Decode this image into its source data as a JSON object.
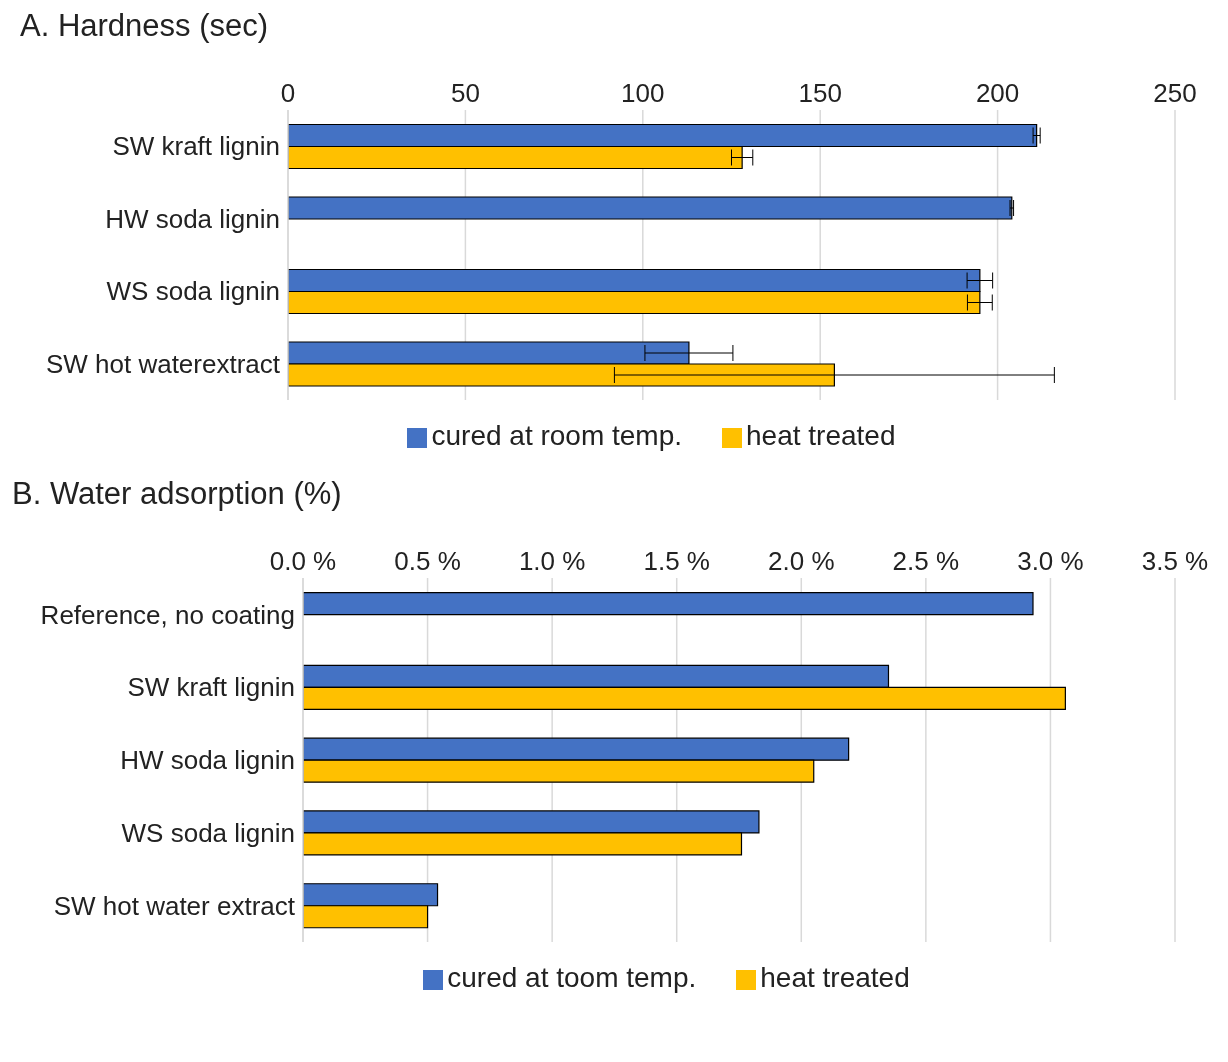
{
  "chart_data": [
    {
      "type": "bar",
      "orientation": "horizontal",
      "title": "A. Hardness (sec)",
      "categories": [
        "SW kraft lignin",
        "HW soda lignin",
        "WS soda lignin",
        "SW hot waterextract"
      ],
      "series": [
        {
          "name": "cured at room temp.",
          "color": "#4472c4",
          "values": [
            211,
            204,
            195,
            113
          ],
          "errors": [
            1,
            0.5,
            3.6,
            12.4
          ]
        },
        {
          "name": "heat treated",
          "color": "#ffc000",
          "values": [
            128,
            null,
            195,
            154
          ],
          "errors": [
            3,
            null,
            3.5,
            62
          ]
        }
      ],
      "xlim": [
        0,
        250
      ],
      "xticks": [
        0,
        50,
        100,
        150,
        200,
        250
      ],
      "grid": "x",
      "legend": "bottom"
    },
    {
      "type": "bar",
      "orientation": "horizontal",
      "title": "B. Water adsorption (%)",
      "categories": [
        "Reference, no coating",
        "SW kraft lignin",
        "HW soda lignin",
        "WS soda lignin",
        "SW hot water extract"
      ],
      "series": [
        {
          "name": "cured at toom temp.",
          "color": "#4472c4",
          "values": [
            2.93,
            2.35,
            2.19,
            1.83,
            0.54
          ]
        },
        {
          "name": "heat treated",
          "color": "#ffc000",
          "values": [
            null,
            3.06,
            2.05,
            1.76,
            0.5
          ]
        }
      ],
      "xlim": [
        0,
        3.5
      ],
      "xticks": [
        {
          "value": 0,
          "label": "0.0 %"
        },
        {
          "value": 0.5,
          "label": "0.5 %"
        },
        {
          "value": 1,
          "label": "1.0 %"
        },
        {
          "value": 1.5,
          "label": "1.5 %"
        },
        {
          "value": 2,
          "label": "2.0 %"
        },
        {
          "value": 2.5,
          "label": "2.5 %"
        },
        {
          "value": 3,
          "label": "3.0 %"
        },
        {
          "value": 3.5,
          "label": "3.5 %"
        }
      ],
      "grid": "x",
      "legend": "bottom"
    }
  ]
}
